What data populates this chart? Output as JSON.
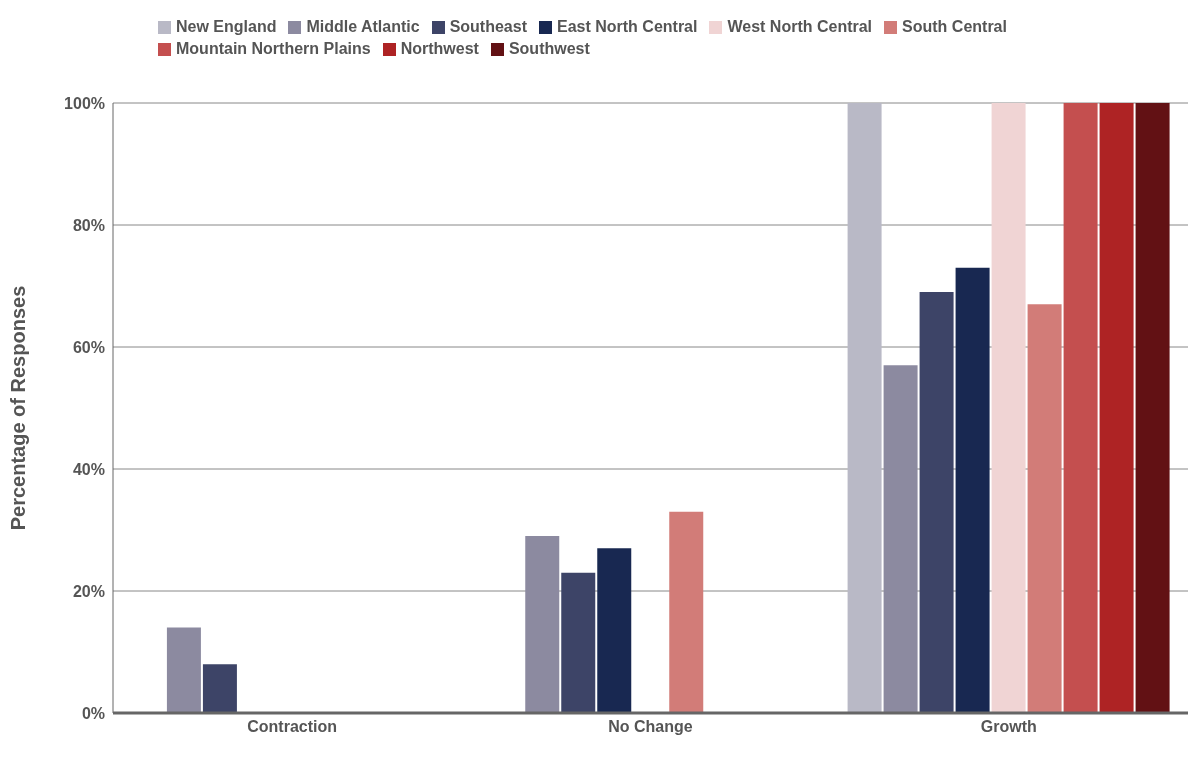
{
  "chart_data": {
    "type": "bar",
    "ylabel": "Percentage of Responses",
    "categories": [
      "Contraction",
      "No Change",
      "Growth"
    ],
    "series": [
      {
        "name": "New England",
        "color": "#b9b9c6",
        "values": [
          0,
          0,
          100
        ]
      },
      {
        "name": "Middle Atlantic",
        "color": "#8c8aa0",
        "values": [
          14,
          29,
          57
        ]
      },
      {
        "name": "Southeast",
        "color": "#3d4467",
        "values": [
          8,
          23,
          69
        ]
      },
      {
        "name": "East North Central",
        "color": "#182851",
        "values": [
          0,
          27,
          73
        ]
      },
      {
        "name": "West North Central",
        "color": "#f0d4d4",
        "values": [
          0,
          0,
          100
        ]
      },
      {
        "name": "South Central",
        "color": "#d27c78",
        "values": [
          0,
          33,
          67
        ]
      },
      {
        "name": "Mountain Northern Plains",
        "color": "#c44f4f",
        "values": [
          0,
          0,
          100
        ]
      },
      {
        "name": "Northwest",
        "color": "#ae2324",
        "values": [
          0,
          0,
          100
        ]
      },
      {
        "name": "Southwest",
        "color": "#621114",
        "values": [
          0,
          0,
          100
        ]
      }
    ],
    "ylim": [
      0,
      100
    ],
    "yticks": [
      {
        "value": 0,
        "label": "0%"
      },
      {
        "value": 20,
        "label": "20%"
      },
      {
        "value": 40,
        "label": "40%"
      },
      {
        "value": 60,
        "label": "60%"
      },
      {
        "value": 80,
        "label": "80%"
      },
      {
        "value": 100,
        "label": "100%"
      }
    ],
    "grid": "y",
    "legend": "top"
  }
}
